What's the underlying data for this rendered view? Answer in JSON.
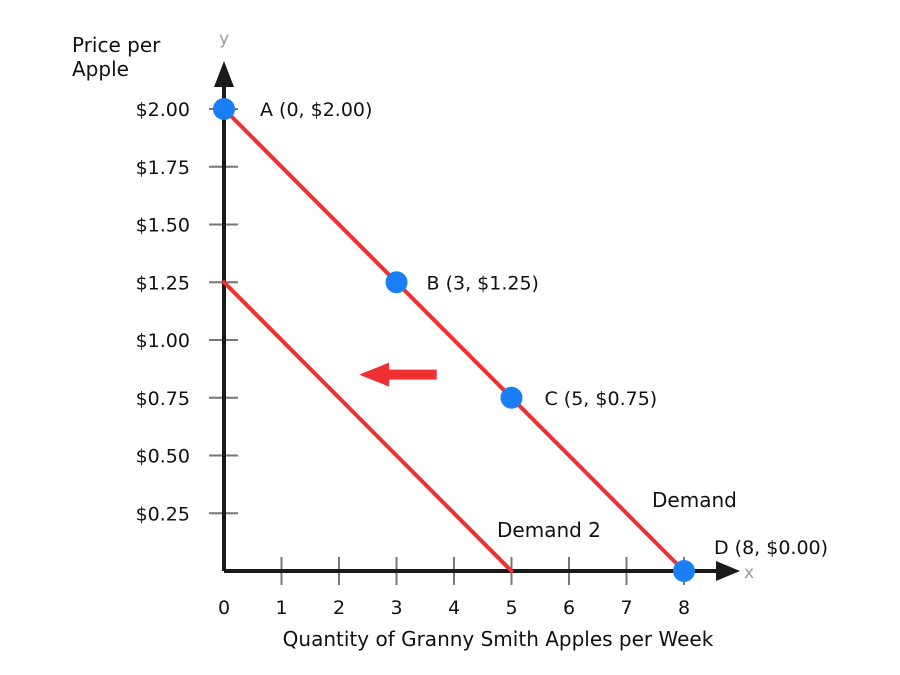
{
  "colors": {
    "curve": "#ee3030",
    "point": "#1a7ef7",
    "axis": "#1a1a1a",
    "tick": "#777777",
    "axis_letter": "#9a9a9a",
    "arrow": "#ee3030"
  },
  "chart_data": {
    "type": "line",
    "xlabel": "Quantity of Granny Smith Apples per Week",
    "ylabel_lines": [
      "Price per",
      "Apple"
    ],
    "x_axis_letter": "x",
    "y_axis_letter": "y",
    "xlim": [
      0,
      8.6
    ],
    "ylim": [
      0,
      2.3
    ],
    "x_ticks": [
      {
        "value": 0,
        "label": "0"
      },
      {
        "value": 1,
        "label": "1"
      },
      {
        "value": 2,
        "label": "2"
      },
      {
        "value": 3,
        "label": "3"
      },
      {
        "value": 4,
        "label": "4"
      },
      {
        "value": 5,
        "label": "5"
      },
      {
        "value": 6,
        "label": "6"
      },
      {
        "value": 7,
        "label": "7"
      },
      {
        "value": 8,
        "label": "8"
      }
    ],
    "y_ticks": [
      {
        "value": 0.25,
        "label": "$0.25"
      },
      {
        "value": 0.5,
        "label": "$0.50"
      },
      {
        "value": 0.75,
        "label": "$0.75"
      },
      {
        "value": 1.0,
        "label": "$1.00"
      },
      {
        "value": 1.25,
        "label": "$1.25"
      },
      {
        "value": 1.5,
        "label": "$1.50"
      },
      {
        "value": 1.75,
        "label": "$1.75"
      },
      {
        "value": 2.0,
        "label": "$2.00"
      }
    ],
    "series": [
      {
        "name": "Demand",
        "x": [
          0,
          8
        ],
        "y": [
          2.0,
          0.0
        ],
        "points": [
          {
            "x": 0,
            "y": 2.0,
            "label": "A (0, $2.00)"
          },
          {
            "x": 3,
            "y": 1.25,
            "label": "B (3, $1.25)"
          },
          {
            "x": 5,
            "y": 0.75,
            "label": "C (5, $0.75)"
          },
          {
            "x": 8,
            "y": 0.0,
            "label": "D (8, $0.00)"
          }
        ]
      },
      {
        "name": "Demand 2",
        "x": [
          0,
          5
        ],
        "y": [
          1.25,
          0.0
        ]
      }
    ],
    "annotations": [
      {
        "type": "arrow",
        "direction": "left",
        "from": {
          "x": 3.7,
          "y": 0.85
        },
        "to": {
          "x": 2.35,
          "y": 0.85
        }
      }
    ],
    "grid": false
  }
}
